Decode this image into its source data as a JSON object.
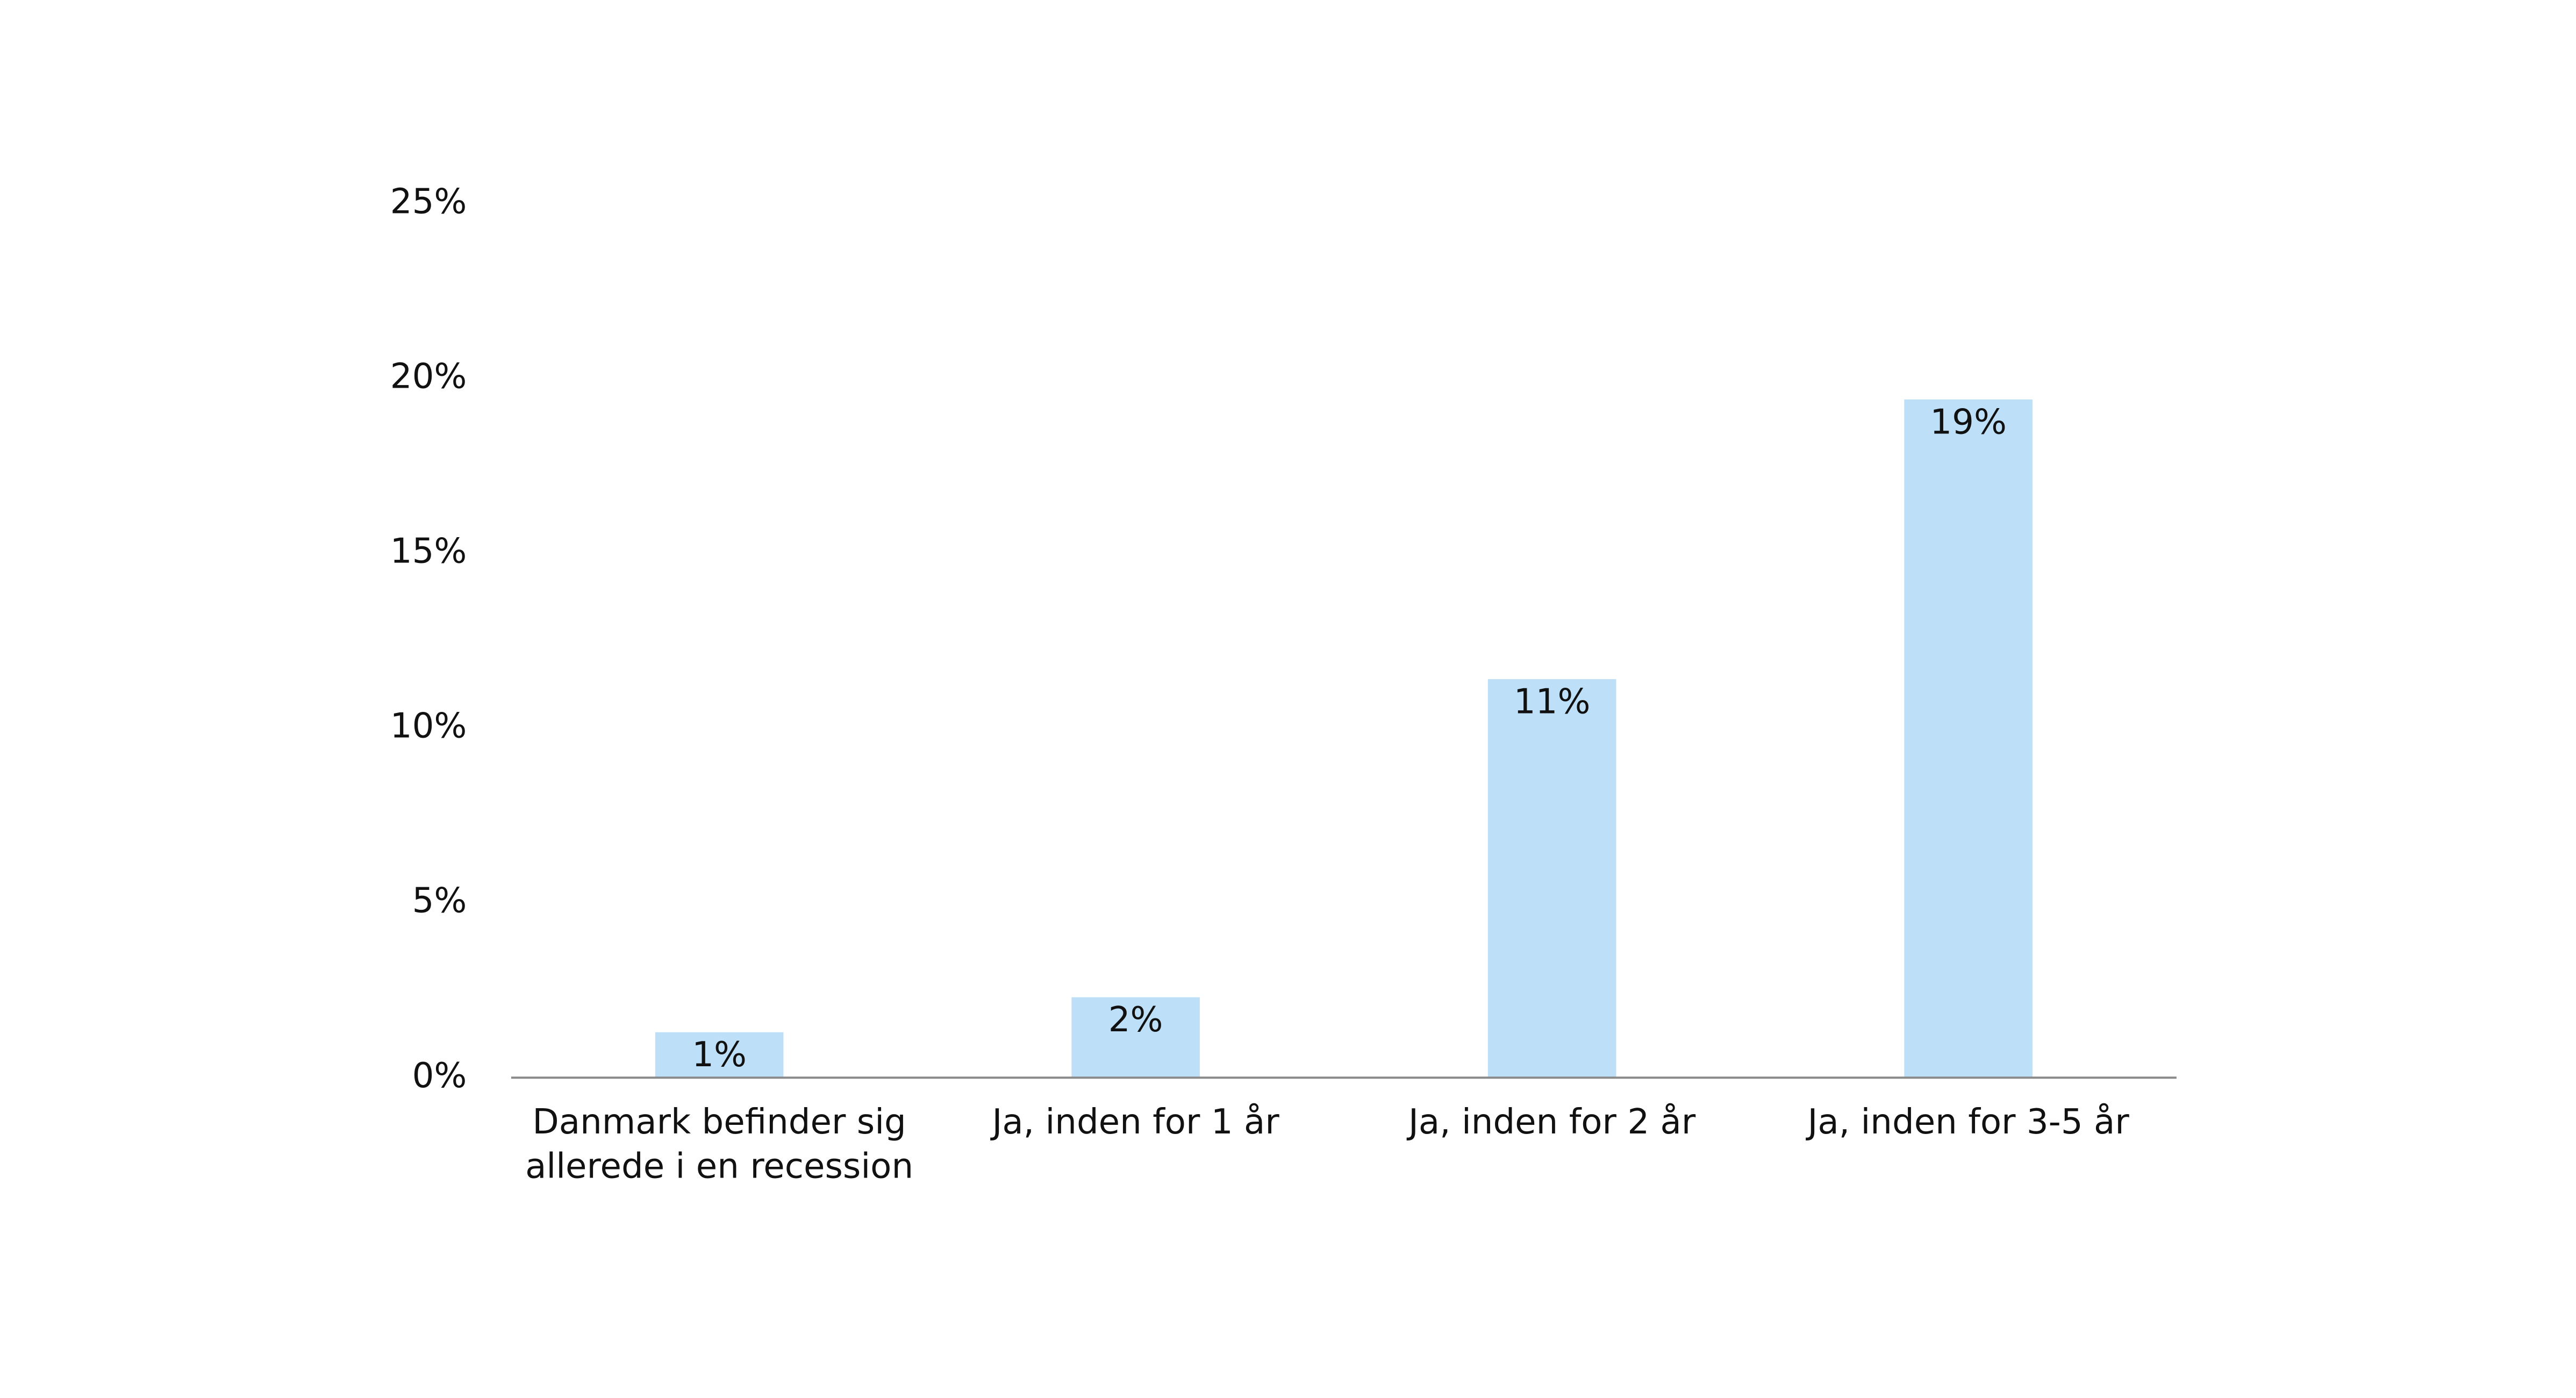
{
  "chart_data": {
    "type": "bar",
    "categories": [
      "Danmark befinder sig allerede i en recession",
      "Ja, inden for 1 år",
      "Ja, inden for 2 år",
      "Ja, inden for 3-5 år"
    ],
    "values": [
      1.3,
      2.3,
      11.4,
      19.4
    ],
    "value_labels": [
      "1%",
      "2%",
      "11%",
      "19%"
    ],
    "color": "#bddff7",
    "ylim": [
      0,
      25
    ],
    "yticks": [
      {
        "value": 0,
        "label": "0%"
      },
      {
        "value": 5,
        "label": "5%"
      },
      {
        "value": 10,
        "label": "10%"
      },
      {
        "value": 15,
        "label": "15%"
      },
      {
        "value": 20,
        "label": "20%"
      },
      {
        "value": 25,
        "label": "25%"
      }
    ],
    "grid": false
  }
}
